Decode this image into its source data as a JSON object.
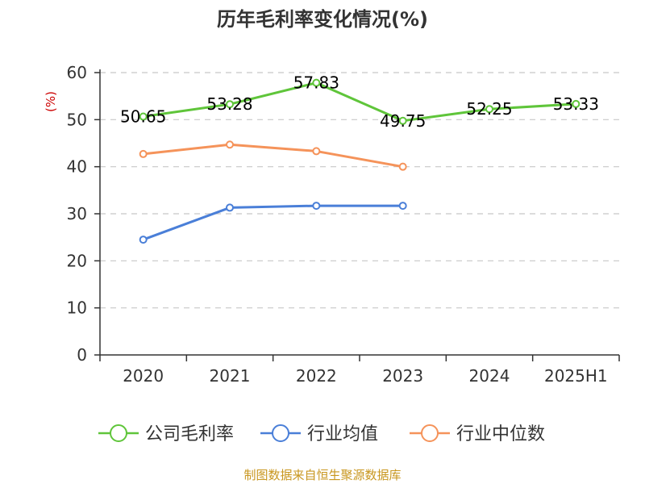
{
  "chart_data": {
    "type": "line",
    "title": "历年毛利率变化情况(%)",
    "ylabel": "(%)",
    "xlabel": "",
    "categories": [
      "2020",
      "2021",
      "2022",
      "2023",
      "2024",
      "2025H1"
    ],
    "ylim": [
      0,
      60
    ],
    "yticks": [
      0,
      10,
      20,
      30,
      40,
      50,
      60
    ],
    "grid": true,
    "legend_position": "bottom",
    "series": [
      {
        "name": "公司毛利率",
        "color": "#5fc53a",
        "values": [
          50.65,
          53.28,
          57.83,
          49.75,
          52.25,
          53.33
        ],
        "labels": [
          "50.65",
          "53.28",
          "57.83",
          "49.75",
          "52.25",
          "53.33"
        ]
      },
      {
        "name": "行业均值",
        "color": "#4a7fd8",
        "values": [
          24.5,
          31.3,
          31.7,
          31.7,
          null,
          null
        ],
        "labels": []
      },
      {
        "name": "行业中位数",
        "color": "#f5935a",
        "values": [
          42.7,
          44.7,
          43.3,
          40.0,
          null,
          null
        ],
        "labels": []
      }
    ],
    "source": "制图数据来自恒生聚源数据库",
    "colors": {
      "axis": "#333333",
      "grid": "#c8c8c8",
      "ylabel": "#cc0000",
      "source": "#c8961e"
    }
  }
}
